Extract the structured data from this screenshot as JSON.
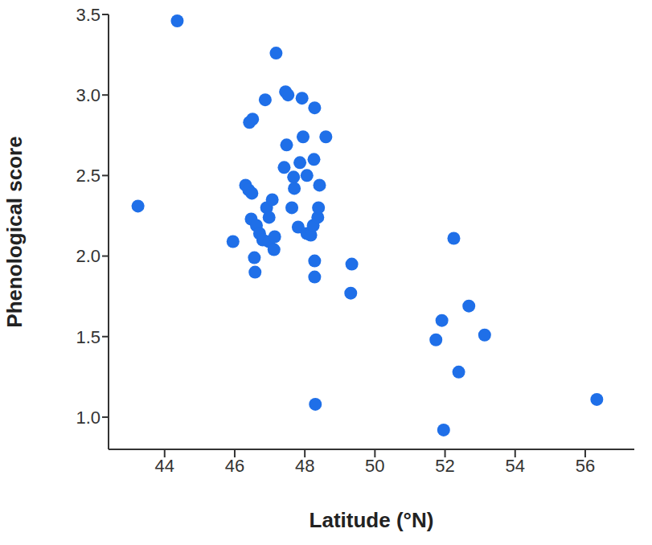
{
  "chart_data": {
    "type": "scatter",
    "x_label": "Latitude (°N)",
    "y_label": "Phenological score",
    "color": "#1f6fe8",
    "marker": "circle",
    "grid": false,
    "xlim": [
      42.4,
      57.4
    ],
    "ylim": [
      0.8,
      3.5
    ],
    "xticks": [
      44,
      46,
      48,
      50,
      52,
      54,
      56
    ],
    "yticks": [
      {
        "value": 1,
        "label": "1.0"
      },
      1.5,
      {
        "value": 2,
        "label": "2.0"
      },
      2.5,
      {
        "value": 3,
        "label": "3.0"
      },
      3.5
    ],
    "x": [
      43.24,
      44.36,
      45.95,
      46.31,
      46.4,
      46.49,
      46.42,
      46.51,
      46.47,
      46.62,
      46.56,
      46.58,
      46.71,
      46.8,
      46.87,
      46.91,
      46.98,
      46.98,
      47.07,
      47.12,
      47.14,
      47.18,
      47.41,
      47.45,
      47.48,
      47.52,
      47.63,
      47.68,
      47.7,
      47.81,
      47.86,
      47.92,
      47.95,
      48.06,
      48.06,
      48.17,
      48.24,
      48.26,
      48.28,
      48.28,
      48.28,
      48.37,
      48.3,
      48.42,
      48.39,
      48.6,
      49.34,
      49.31,
      51.74,
      51.91,
      51.96,
      52.25,
      52.39,
      52.68,
      53.13,
      56.33
    ],
    "values": [
      2.31,
      3.46,
      2.09,
      2.44,
      2.41,
      2.39,
      2.83,
      2.85,
      2.23,
      2.19,
      1.99,
      1.9,
      2.14,
      2.1,
      2.97,
      2.3,
      2.24,
      2.09,
      2.35,
      2.04,
      2.12,
      3.26,
      2.55,
      3.02,
      2.69,
      3.0,
      2.3,
      2.49,
      2.42,
      2.18,
      2.58,
      2.98,
      2.74,
      2.14,
      2.5,
      2.13,
      2.19,
      2.6,
      1.97,
      1.87,
      2.92,
      2.24,
      1.08,
      2.44,
      2.3,
      2.74,
      1.95,
      1.77,
      1.48,
      1.6,
      0.92,
      2.11,
      1.28,
      1.69,
      1.51,
      1.11
    ]
  }
}
